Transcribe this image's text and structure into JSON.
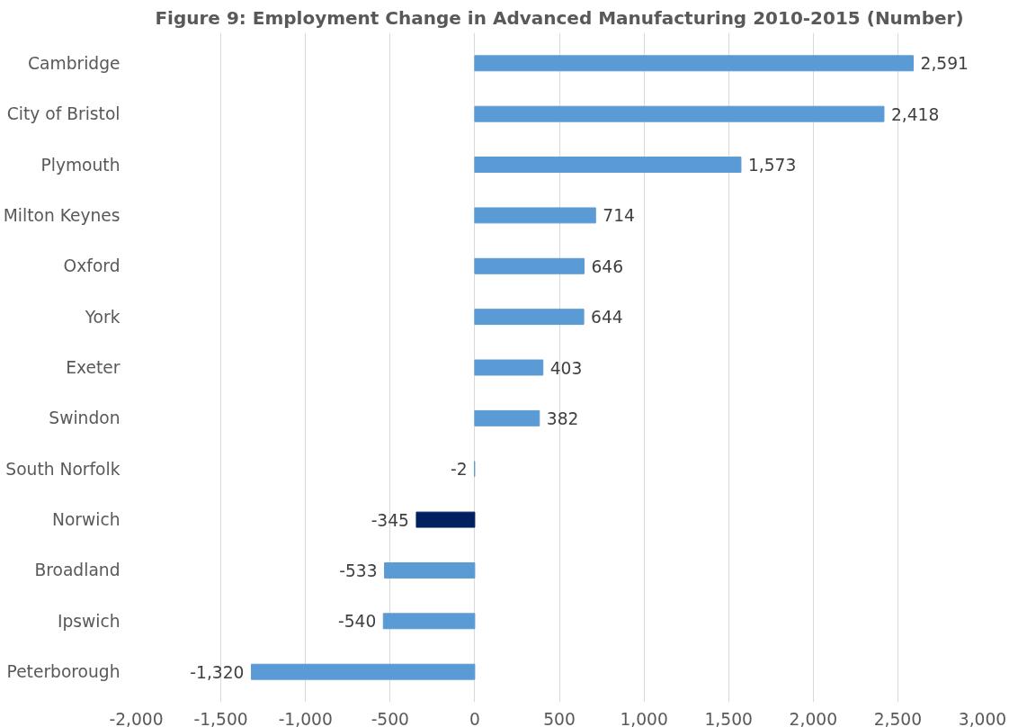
{
  "chart_data": {
    "type": "bar",
    "orientation": "horizontal",
    "title": "Figure 9: Employment Change in Advanced Manufacturing 2010-2015 (Number)",
    "categories": [
      "Cambridge",
      "City of Bristol",
      "Plymouth",
      "Milton Keynes",
      "Oxford",
      "York",
      "Exeter",
      "Swindon",
      "South Norfolk",
      "Norwich",
      "Broadland",
      "Ipswich",
      "Peterborough"
    ],
    "values": [
      2591,
      2418,
      1573,
      714,
      646,
      644,
      403,
      382,
      -2,
      -345,
      -533,
      -540,
      -1320
    ],
    "colors": [
      "#5b9bd5",
      "#5b9bd5",
      "#5b9bd5",
      "#5b9bd5",
      "#5b9bd5",
      "#5b9bd5",
      "#5b9bd5",
      "#5b9bd5",
      "#5b9bd5",
      "#002060",
      "#5b9bd5",
      "#5b9bd5",
      "#5b9bd5"
    ],
    "xlim": [
      -2000,
      3000
    ],
    "xticks": [
      {
        "value": -2000,
        "label": "-2,000"
      },
      {
        "value": -1500,
        "label": "-1,500"
      },
      {
        "value": -1000,
        "label": "-1,000"
      },
      -500,
      0,
      500,
      {
        "value": 1000,
        "label": "1,000"
      },
      {
        "value": 1500,
        "label": "1,500"
      },
      {
        "value": 2000,
        "label": "2,000"
      },
      {
        "value": 2500,
        "label": "2,500"
      },
      {
        "value": 3000,
        "label": "3,000"
      }
    ],
    "value_labels": [
      "2,591",
      "2,418",
      "1,573",
      "714",
      "646",
      "644",
      "403",
      "382",
      "-2",
      "-345",
      "-533",
      "-540",
      "-1,320"
    ],
    "grid": "x"
  }
}
